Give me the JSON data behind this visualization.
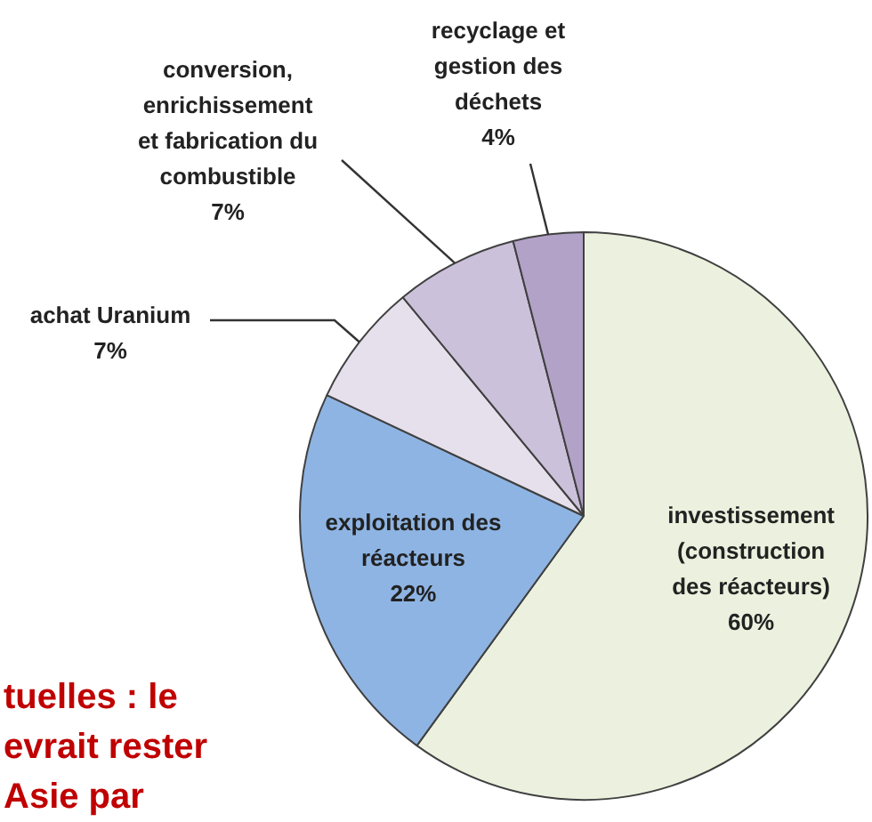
{
  "chart_data": {
    "type": "pie",
    "categories": [
      "investissement\n(construction\ndes réacteurs)",
      "exploitation des\nréacteurs",
      "achat Uranium",
      "conversion,\nenrichissement\net fabrication du\ncombustible",
      "recyclage et\ngestion des\ndéchets"
    ],
    "values": [
      60,
      22,
      7,
      7,
      4
    ],
    "value_labels": [
      "60%",
      "22%",
      "7%",
      "7%",
      "4%"
    ],
    "colors": [
      "#ebf1de",
      "#8eb4e3",
      "#e6e0ec",
      "#ccc1da",
      "#b3a2c7"
    ],
    "annotations": [
      "tuelles : le",
      "evrait rester",
      "Asie par"
    ]
  }
}
